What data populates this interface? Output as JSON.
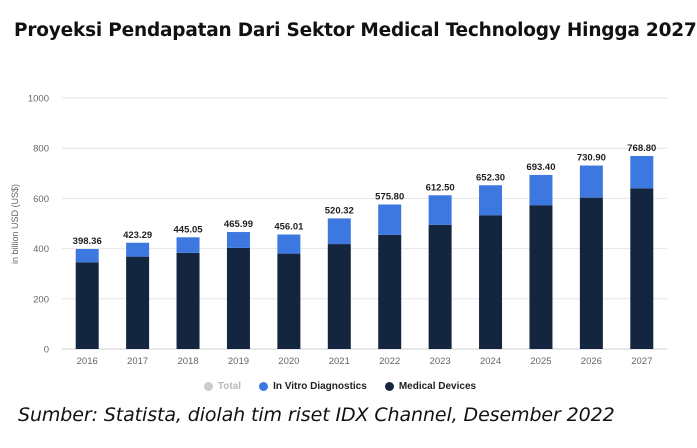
{
  "title": "Proyeksi Pendapatan Dari Sektor Medical Technology Hingga 2027",
  "source": "Sumber: Statista, diolah tim riset IDX Channel, Desember 2022",
  "colors": {
    "medical_devices": "#14253f",
    "in_vitro": "#3d78e0",
    "total": "#cccccc"
  },
  "legend": {
    "total": "Total",
    "in_vitro": "In Vitro Diagnostics",
    "medical_devices": "Medical Devices"
  },
  "chart_data": {
    "type": "bar",
    "stacked": true,
    "ylabel": "in billion USD (US$)",
    "xlabel": "",
    "ylim": [
      0,
      1000
    ],
    "yticks": [
      0,
      200,
      400,
      600,
      800,
      1000
    ],
    "grid": true,
    "legend_position": "bottom",
    "categories": [
      "2016",
      "2017",
      "2018",
      "2019",
      "2020",
      "2021",
      "2022",
      "2023",
      "2024",
      "2025",
      "2026",
      "2027"
    ],
    "series": [
      {
        "name": "Medical Devices",
        "values": [
          345,
          368,
          383,
          403,
          380,
          418,
          455,
          495,
          533,
          573,
          603,
          640
        ]
      },
      {
        "name": "In Vitro Diagnostics",
        "values": [
          53.36,
          55.29,
          62.05,
          62.99,
          76.01,
          102.32,
          120.8,
          117.5,
          119.3,
          120.4,
          127.9,
          128.8
        ]
      }
    ],
    "totals": [
      "398.36",
      "423.29",
      "445.05",
      "465.99",
      "456.01",
      "520.32",
      "575.80",
      "612.50",
      "652.30",
      "693.40",
      "730.90",
      "768.80"
    ]
  }
}
